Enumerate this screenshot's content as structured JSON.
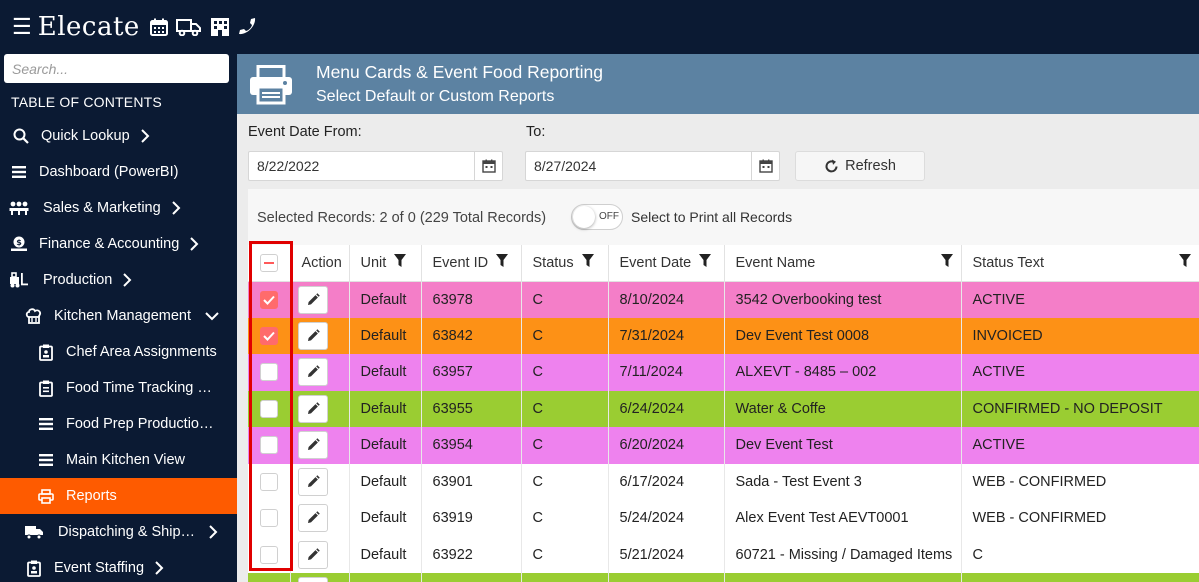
{
  "app": {
    "logo": "Elecate"
  },
  "search": {
    "placeholder": "Search..."
  },
  "sidebar": {
    "toc_title": "TABLE OF CONTENTS",
    "items": [
      {
        "label": "Quick Lookup",
        "icon": "search-icon"
      },
      {
        "label": "Dashboard (PowerBI)",
        "icon": "list-icon"
      },
      {
        "label": "Sales & Marketing",
        "icon": "people-icon"
      },
      {
        "label": "Finance & Accounting",
        "icon": "money-icon"
      },
      {
        "label": "Production",
        "icon": "forklift-icon"
      },
      {
        "label": "Kitchen Management",
        "icon": "chef-hat-icon"
      },
      {
        "label": "Chef Area Assignments",
        "icon": "clipboard-icon"
      },
      {
        "label": "Food Time Tracking Production",
        "icon": "clipboard-icon"
      },
      {
        "label": "Food Prep Production Report",
        "icon": "list-icon"
      },
      {
        "label": "Main Kitchen View",
        "icon": "list-icon"
      },
      {
        "label": "Reports",
        "icon": "printer-icon"
      },
      {
        "label": "Dispatching & Shipping",
        "icon": "truck-icon"
      },
      {
        "label": "Event Staffing",
        "icon": "clipboard-icon"
      }
    ]
  },
  "header": {
    "title": "Menu Cards & Event Food Reporting",
    "subtitle": "Select Default or Custom Reports"
  },
  "filters": {
    "from_label": "Event Date From:",
    "from_value": "8/22/2022",
    "to_label": "To:",
    "to_value": "8/27/2024",
    "refresh_label": "Refresh"
  },
  "selection": {
    "text": "Selected Records: 2 of 0 (229 Total Records)",
    "toggle_label": "OFF",
    "print_all_label": "Select to Print all Records"
  },
  "table": {
    "columns": [
      "Action",
      "Unit",
      "Event ID",
      "Status",
      "Event Date",
      "Event Name",
      "Status Text"
    ],
    "rows": [
      {
        "checked": true,
        "color": "#f47ec8",
        "unit": "Default",
        "event_id": "63978",
        "status": "C",
        "event_date": "8/10/2024",
        "event_name": "3542 Overbooking test",
        "status_text": "ACTIVE"
      },
      {
        "checked": true,
        "color": "#fd9116",
        "unit": "Default",
        "event_id": "63842",
        "status": "C",
        "event_date": "7/31/2024",
        "event_name": "Dev Event Test 0008",
        "status_text": "INVOICED"
      },
      {
        "checked": false,
        "color": "#ee82ee",
        "unit": "Default",
        "event_id": "63957",
        "status": "C",
        "event_date": "7/11/2024",
        "event_name": "ALXEVT - 8485 – 002",
        "status_text": "ACTIVE"
      },
      {
        "checked": false,
        "color": "#9acd32",
        "unit": "Default",
        "event_id": "63955",
        "status": "C",
        "event_date": "6/24/2024",
        "event_name": "Water & Coffe",
        "status_text": "CONFIRMED - NO DEPOSIT"
      },
      {
        "checked": false,
        "color": "#ee82ee",
        "unit": "Default",
        "event_id": "63954",
        "status": "C",
        "event_date": "6/20/2024",
        "event_name": "Dev Event Test",
        "status_text": "ACTIVE"
      },
      {
        "checked": false,
        "color": "#ffffff",
        "unit": "Default",
        "event_id": "63901",
        "status": "C",
        "event_date": "6/17/2024",
        "event_name": "Sada - Test Event 3",
        "status_text": "WEB - CONFIRMED"
      },
      {
        "checked": false,
        "color": "#ffffff",
        "unit": "Default",
        "event_id": "63919",
        "status": "C",
        "event_date": "5/24/2024",
        "event_name": "Alex Event Test AEVT0001",
        "status_text": "WEB - CONFIRMED"
      },
      {
        "checked": false,
        "color": "#ffffff",
        "unit": "Default",
        "event_id": "63922",
        "status": "C",
        "event_date": "5/21/2024",
        "event_name": "60721 - Missing / Damaged Items",
        "status_text": "C"
      },
      {
        "checked": false,
        "color": "#9acd32",
        "unit": "",
        "event_id": "",
        "status": "",
        "event_date": "",
        "event_name": "",
        "status_text": ""
      }
    ]
  },
  "colors": {
    "accent": "#fe5b00",
    "nav_bg": "#0b1a33",
    "header_bg": "#5c82a2",
    "highlight_box": "#e00000"
  }
}
